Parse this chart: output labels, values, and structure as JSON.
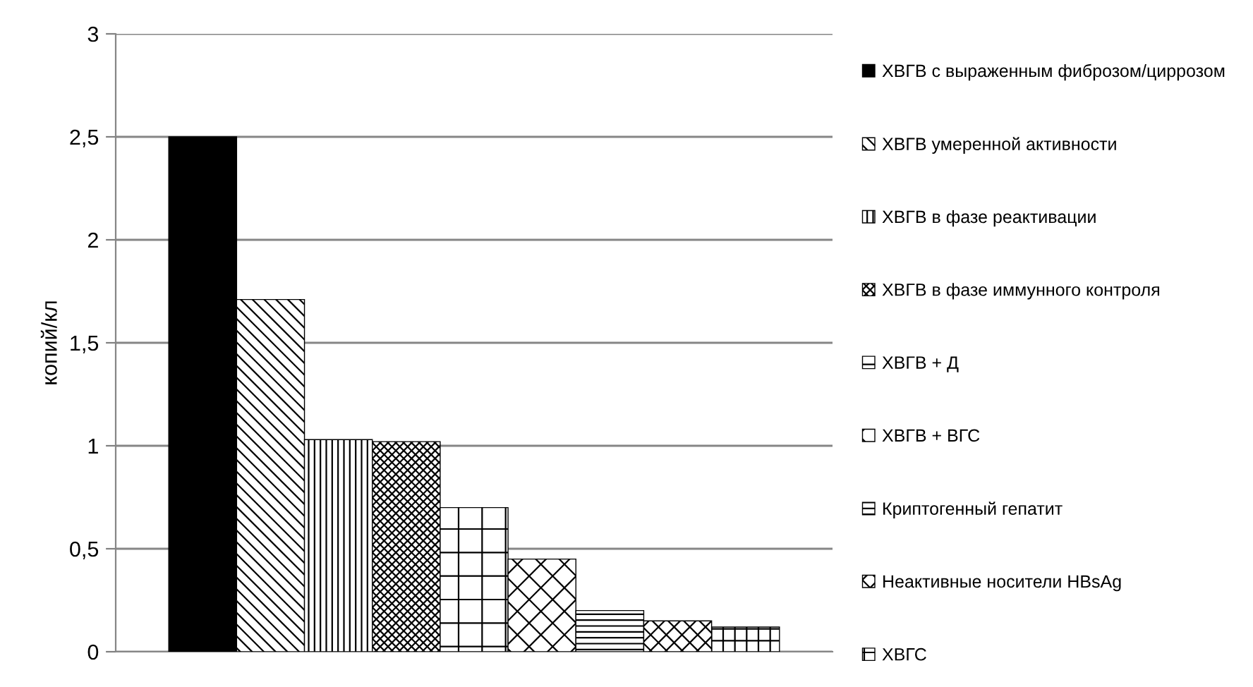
{
  "chart_data": {
    "type": "bar",
    "ylabel": "копий/кл",
    "categories": [
      null
    ],
    "series": [
      {
        "name": "ХВГВ с выраженным фиброзом/циррозом",
        "color": "#000000",
        "values": [
          2.5
        ]
      },
      {
        "name": "ХВГВ умеренной активности",
        "color": "#000000",
        "values": [
          1.71
        ]
      },
      {
        "name": "ХВГВ в фазе реактивации",
        "color": "#000000",
        "values": [
          1.03
        ]
      },
      {
        "name": "ХВГВ в фазе иммунного контроля",
        "color": "#000000",
        "values": [
          1.02
        ]
      },
      {
        "name": "ХВГВ + Д",
        "color": "#000000",
        "values": [
          0.7
        ]
      },
      {
        "name": "ХВГВ + ВГС",
        "color": "#000000",
        "values": [
          0.45
        ]
      },
      {
        "name": "Криптогенный гепатит",
        "color": "#000000",
        "values": [
          0.2
        ]
      },
      {
        "name": "Неактивные носители HBsAg",
        "color": "#000000",
        "values": [
          0.15
        ]
      },
      {
        "name": "ХВГС",
        "color": "#000000",
        "values": [
          0.12
        ]
      }
    ],
    "ylim": [
      0,
      3
    ],
    "yticks": [
      0,
      {
        "value": 0.5,
        "label": "0,5"
      },
      1,
      {
        "value": 1.5,
        "label": "1,5"
      },
      2,
      {
        "value": 2.5,
        "label": "2,5"
      },
      3
    ],
    "grid": "y",
    "legend": "right"
  }
}
